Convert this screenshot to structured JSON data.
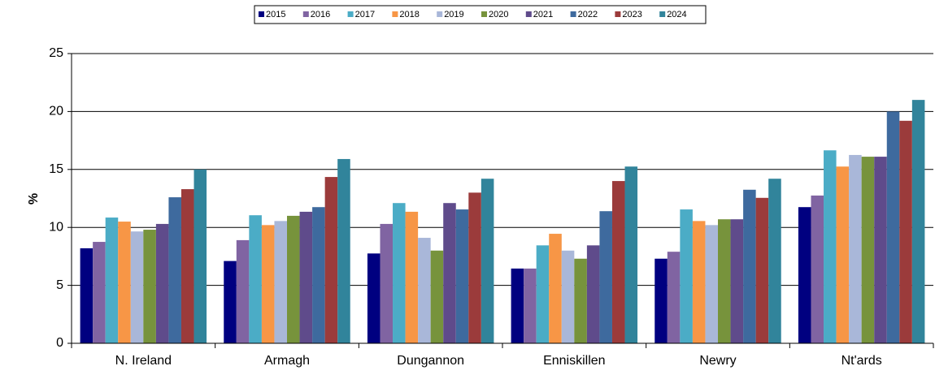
{
  "chart_data": {
    "type": "bar",
    "y_label": "%",
    "categories": [
      "N. Ireland",
      "Armagh",
      "Dungannon",
      "Enniskillen",
      "Newry",
      "Nt'ards"
    ],
    "series": [
      {
        "name": "2015",
        "color": "#000080",
        "values": [
          8.2,
          7.1,
          7.75,
          6.45,
          7.3,
          11.75
        ]
      },
      {
        "name": "2016",
        "color": "#8064a2",
        "values": [
          8.75,
          8.9,
          10.3,
          6.45,
          7.9,
          12.75
        ]
      },
      {
        "name": "2017",
        "color": "#4bacc6",
        "values": [
          10.85,
          11.05,
          12.1,
          8.45,
          11.55,
          16.65
        ]
      },
      {
        "name": "2018",
        "color": "#f79646",
        "values": [
          10.5,
          10.2,
          11.35,
          9.45,
          10.55,
          15.25
        ]
      },
      {
        "name": "2019",
        "color": "#a9b7d9",
        "values": [
          9.65,
          10.55,
          9.1,
          8.0,
          10.2,
          16.25
        ]
      },
      {
        "name": "2020",
        "color": "#77933c",
        "values": [
          9.8,
          11.0,
          8.0,
          7.3,
          10.7,
          16.1
        ]
      },
      {
        "name": "2021",
        "color": "#5f4b8b",
        "values": [
          10.3,
          11.35,
          12.1,
          8.45,
          10.7,
          16.1
        ]
      },
      {
        "name": "2022",
        "color": "#3e6a9e",
        "values": [
          12.6,
          11.75,
          11.55,
          11.4,
          13.25,
          20.0
        ]
      },
      {
        "name": "2023",
        "color": "#9b3b3b",
        "values": [
          13.3,
          14.35,
          13.0,
          14.0,
          12.55,
          19.2
        ]
      },
      {
        "name": "2024",
        "color": "#31849b",
        "values": [
          15.0,
          15.9,
          14.2,
          15.25,
          14.2,
          21.0
        ]
      }
    ],
    "ylim": [
      0,
      25
    ],
    "yticks": [
      0,
      5,
      10,
      15,
      20,
      25
    ],
    "grid": true,
    "legend": "top"
  }
}
